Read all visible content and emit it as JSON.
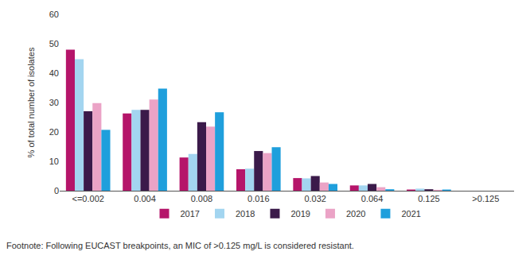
{
  "chart_data": {
    "type": "bar",
    "y_label": "% of total number of isolates",
    "categories": [
      "<=0.002",
      "0.004",
      "0.008",
      "0.016",
      "0.032",
      "0.064",
      "0.125",
      ">0.125"
    ],
    "series": [
      {
        "name": "2017",
        "color": "#b5156a",
        "values": [
          48,
          26.3,
          11.3,
          7.3,
          4.3,
          1.8,
          0.4,
          0
        ]
      },
      {
        "name": "2018",
        "color": "#a3d5f0",
        "values": [
          44.7,
          27.5,
          12.5,
          7.5,
          4.2,
          1.8,
          0.7,
          0
        ]
      },
      {
        "name": "2019",
        "color": "#3b1a4a",
        "values": [
          27,
          27.5,
          23.3,
          13.5,
          5,
          2.3,
          0.5,
          0
        ]
      },
      {
        "name": "2020",
        "color": "#eba3c6",
        "values": [
          29.8,
          31,
          21.8,
          12.8,
          2.8,
          1.2,
          0.3,
          0
        ]
      },
      {
        "name": "2021",
        "color": "#1f9fdc",
        "values": [
          20.7,
          34.7,
          26.7,
          14.8,
          2.3,
          0.5,
          0.4,
          0
        ]
      }
    ],
    "ylim": [
      0,
      60
    ],
    "yticks": [
      0,
      10,
      20,
      30,
      40,
      50,
      60
    ],
    "grid": false,
    "legend": "bottom",
    "annotations": [
      "Footnote: Following EUCAST breakpoints, an MIC of >0.125 mg/L is considered resistant."
    ]
  }
}
